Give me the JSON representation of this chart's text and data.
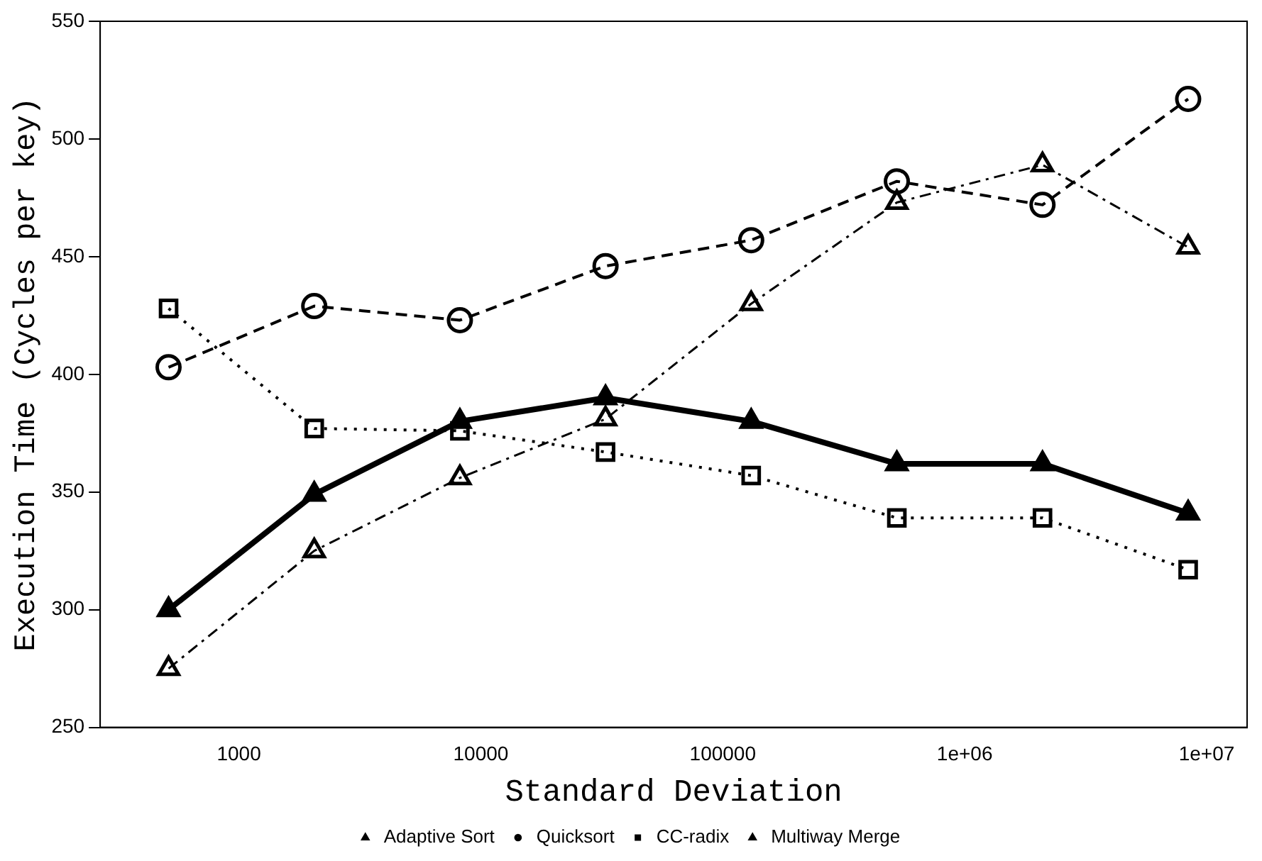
{
  "chart_data": {
    "type": "line",
    "xlabel": "Standard Deviation",
    "ylabel": "Execution Time (Cycles per key)",
    "x": [
      512,
      2048,
      8192,
      32768,
      131072,
      524288,
      2097152,
      8388608
    ],
    "series": [
      {
        "name": "Adaptive Sort",
        "color": "#000000",
        "values": [
          300,
          349,
          380,
          390,
          380,
          362,
          362,
          341
        ],
        "marker": "triangle",
        "line_style": "solid"
      },
      {
        "name": "Quicksort",
        "color": "#000000",
        "values": [
          403,
          429,
          423,
          446,
          457,
          482,
          472,
          517
        ],
        "marker": "circle",
        "line_style": "dashed"
      },
      {
        "name": "CC-radix",
        "color": "#000000",
        "values": [
          428,
          377,
          376,
          367,
          357,
          339,
          339,
          317
        ],
        "marker": "square",
        "line_style": "dotted"
      },
      {
        "name": "Multiway Merge",
        "color": "#000000",
        "values": [
          275,
          325,
          356,
          381,
          430,
          473,
          489,
          454
        ],
        "marker": "triangle",
        "line_style": "dashdot"
      }
    ],
    "log": "x",
    "xlim": [
      267,
      14700000
    ],
    "xticks": [
      1000,
      10000,
      100000,
      {
        "value": 1000000,
        "label": "1e+06"
      },
      {
        "value": 10000000,
        "label": "1e+07"
      }
    ],
    "ylim": [
      250,
      550
    ],
    "yticks": [
      250,
      300,
      350,
      400,
      450,
      500,
      550
    ],
    "grid": false,
    "legend": "bottom"
  }
}
